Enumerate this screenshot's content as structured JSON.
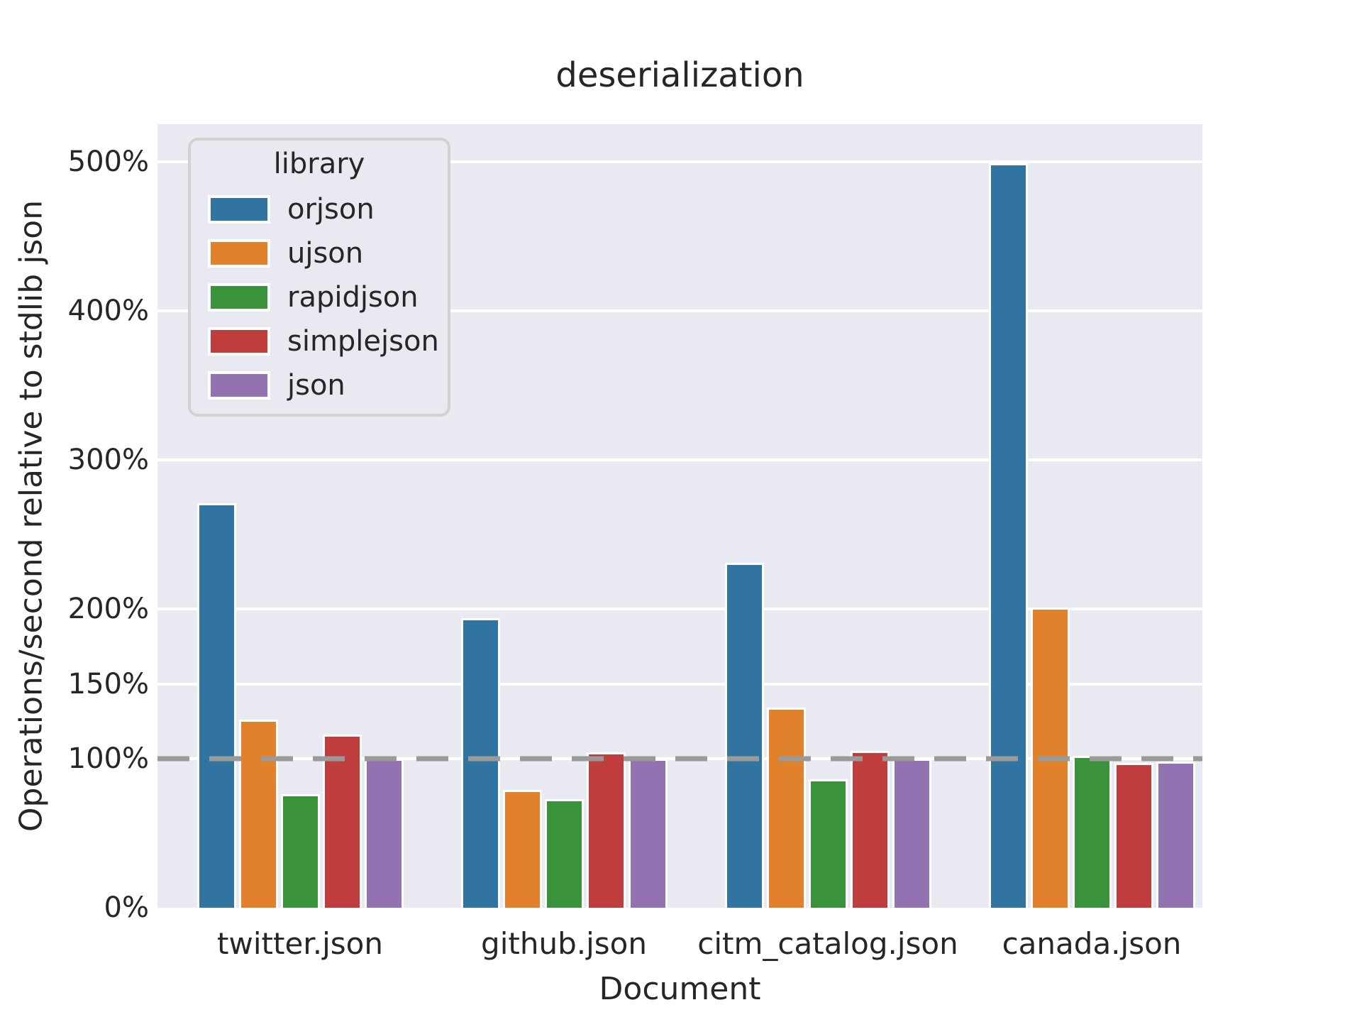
{
  "figure": {
    "title": "deserialization",
    "xlabel": "Document",
    "ylabel": "Operations/second relative to stdlib json"
  },
  "legend": {
    "title": "library"
  },
  "chart_data": {
    "type": "bar",
    "title": "deserialization",
    "xlabel": "Document",
    "ylabel": "Operations/second relative to stdlib json",
    "categories": [
      "twitter.json",
      "github.json",
      "citm_catalog.json",
      "canada.json"
    ],
    "series": [
      {
        "name": "orjson",
        "color": "#3274a1",
        "values": [
          271,
          194,
          231,
          499
        ]
      },
      {
        "name": "ujson",
        "color": "#e1812c",
        "values": [
          126,
          79,
          134,
          201
        ]
      },
      {
        "name": "rapidjson",
        "color": "#3a923a",
        "values": [
          76,
          73,
          86,
          102
        ]
      },
      {
        "name": "simplejson",
        "color": "#c03d3e",
        "values": [
          116,
          104,
          105,
          97
        ]
      },
      {
        "name": "json",
        "color": "#9372b2",
        "values": [
          100,
          100,
          100,
          98
        ]
      }
    ],
    "unit": "percent",
    "ytick_values": [
      0,
      100,
      150,
      200,
      300,
      400,
      500
    ],
    "ytick_labels": [
      "0%",
      "100%",
      "150%",
      "200%",
      "300%",
      "400%",
      "500%"
    ],
    "ylim": [
      0,
      525
    ],
    "reference_line": 100,
    "grid": true,
    "legend_title": "library",
    "legend_position": "upper left",
    "plot_background": "#eaeaf2",
    "grid_color": "#ffffff",
    "reference_line_color": "#9a9a9a",
    "text_color": "#262626"
  }
}
